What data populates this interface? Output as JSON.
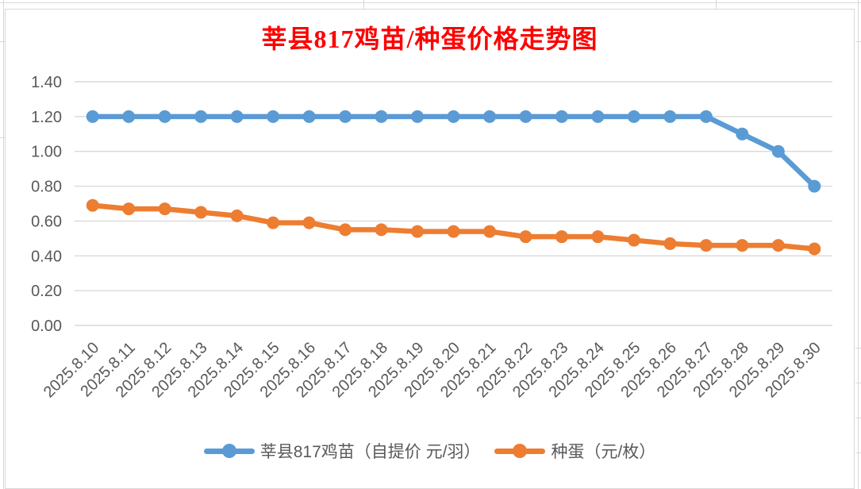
{
  "title": {
    "text": "莘县817鸡苗/种蛋价格走势图",
    "color": "#FF0000"
  },
  "chart_data": {
    "type": "line",
    "title": "莘县817鸡苗/种蛋价格走势图",
    "categories": [
      "2025.8.10",
      "2025.8.11",
      "2025.8.12",
      "2025.8.13",
      "2025.8.14",
      "2025.8.15",
      "2025.8.16",
      "2025.8.17",
      "2025.8.18",
      "2025.8.19",
      "2025.8.20",
      "2025.8.21",
      "2025.8.22",
      "2025.8.23",
      "2025.8.24",
      "2025.8.25",
      "2025.8.26",
      "2025.8.27",
      "2025.8.28",
      "2025.8.29",
      "2025.8.30"
    ],
    "series": [
      {
        "name": "莘县817鸡苗（自提价 元/羽）",
        "color": "#5B9BD5",
        "marker": "circle",
        "values": [
          1.2,
          1.2,
          1.2,
          1.2,
          1.2,
          1.2,
          1.2,
          1.2,
          1.2,
          1.2,
          1.2,
          1.2,
          1.2,
          1.2,
          1.2,
          1.2,
          1.2,
          1.2,
          1.1,
          1.0,
          0.8
        ]
      },
      {
        "name": "种蛋（元/枚）",
        "color": "#ED7D31",
        "marker": "circle",
        "values": [
          0.69,
          0.67,
          0.67,
          0.65,
          0.63,
          0.59,
          0.59,
          0.55,
          0.55,
          0.54,
          0.54,
          0.54,
          0.51,
          0.51,
          0.51,
          0.49,
          0.47,
          0.46,
          0.46,
          0.46,
          0.44
        ]
      }
    ],
    "ylim": [
      0,
      1.4
    ],
    "ytick_step": 0.2,
    "ytick_labels": [
      "0.00",
      "0.20",
      "0.40",
      "0.60",
      "0.80",
      "1.00",
      "1.20",
      "1.40"
    ],
    "grid": true,
    "legend_position": "bottom",
    "axis_text_color": "#595959",
    "gridline_color": "#D9D9D9"
  }
}
